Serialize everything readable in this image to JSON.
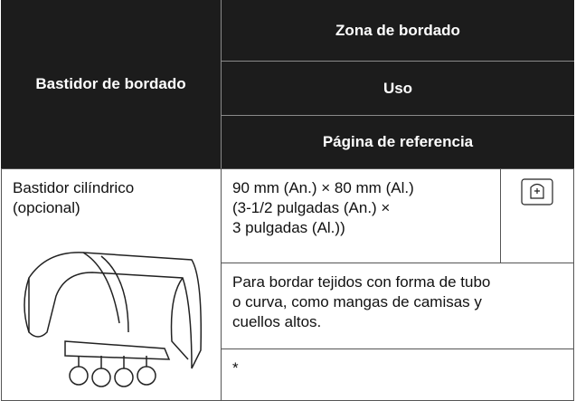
{
  "table": {
    "header": {
      "frame": "Bastidor de bordado",
      "columns": [
        "Zona de bordado",
        "Uso",
        "Página de referencia"
      ]
    },
    "rows": [
      {
        "frame": [
          "Bastidor cilíndrico",
          "(opcional)"
        ],
        "zone": [
          "90 mm (An.) × 80 mm (Al.)",
          "(3-1/2 pulgadas (An.) ×",
          "3 pulgadas (Al.))"
        ],
        "use": [
          "Para bordar tejidos con forma de tubo",
          "o curva, como mangas de camisas y",
          "cuellos altos."
        ],
        "page": "*"
      }
    ]
  }
}
